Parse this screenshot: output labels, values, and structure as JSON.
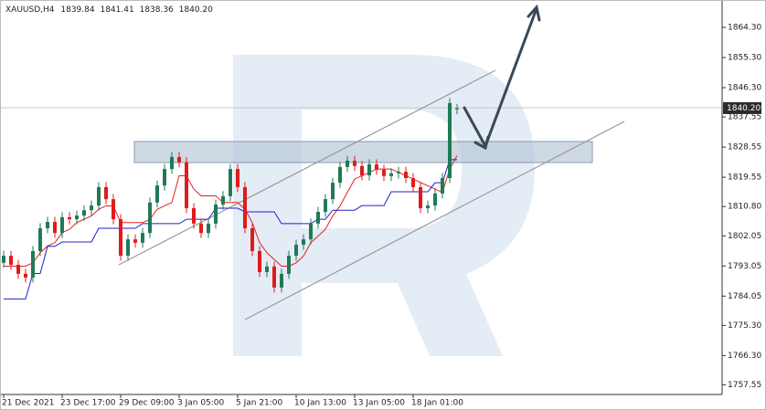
{
  "chart_data": {
    "type": "candlestick",
    "title": "XAUUSD,H4",
    "ohlc_label": [
      "1839.84",
      "1841.41",
      "1838.36",
      "1840.20"
    ],
    "categories": [
      "21 Dec 2021",
      null,
      null,
      null,
      null,
      null,
      null,
      null,
      "23 Dec 17:00",
      null,
      null,
      null,
      null,
      null,
      null,
      null,
      "29 Dec 09:00",
      null,
      null,
      null,
      null,
      null,
      null,
      null,
      "3 Jan 05:00",
      null,
      null,
      null,
      null,
      null,
      null,
      null,
      "5 Jan 21:00",
      null,
      null,
      null,
      null,
      null,
      null,
      null,
      "10 Jan 13:00",
      null,
      null,
      null,
      null,
      null,
      null,
      null,
      "13 Jan 05:00",
      null,
      null,
      null,
      null,
      null,
      null,
      null,
      "18 Jan 01:00",
      null,
      null,
      null,
      null,
      null,
      null
    ],
    "open": [
      1794.0,
      1796.1,
      1793.4,
      1790.7,
      1789.6,
      1797.5,
      1804.3,
      1806.2,
      1802.9,
      1807.6,
      1807.0,
      1808.1,
      1809.7,
      1811.1,
      1816.6,
      1813.0,
      1807.0,
      1796.1,
      1801.0,
      1800.0,
      1802.9,
      1812.0,
      1817.1,
      1822.0,
      1825.6,
      1824.0,
      1810.3,
      1805.7,
      1802.9,
      1805.7,
      1811.4,
      1813.9,
      1822.0,
      1816.6,
      1804.3,
      1797.5,
      1791.2,
      1792.9,
      1786.6,
      1790.7,
      1796.1,
      1799.4,
      1801.0,
      1805.7,
      1809.2,
      1813.0,
      1817.9,
      1822.6,
      1824.5,
      1822.9,
      1820.1,
      1823.4,
      1821.8,
      1819.9,
      1820.7,
      1821.2,
      1819.3,
      1816.6,
      1810.3,
      1811.1,
      1814.7,
      1819.3,
      1839.84
    ],
    "high": [
      1797.6,
      1797.6,
      1794.9,
      1792.2,
      1799.0,
      1805.8,
      1807.7,
      1807.7,
      1809.1,
      1809.1,
      1809.6,
      1811.2,
      1812.6,
      1818.1,
      1818.1,
      1814.5,
      1808.5,
      1802.5,
      1802.5,
      1804.4,
      1813.5,
      1818.6,
      1823.5,
      1827.1,
      1827.1,
      1825.5,
      1811.8,
      1807.2,
      1807.2,
      1812.9,
      1815.4,
      1823.5,
      1823.5,
      1818.1,
      1805.8,
      1799.0,
      1794.4,
      1794.4,
      1792.2,
      1797.6,
      1800.9,
      1802.5,
      1807.2,
      1810.7,
      1814.5,
      1819.4,
      1824.1,
      1826.0,
      1826.0,
      1824.4,
      1824.9,
      1824.9,
      1823.3,
      1822.2,
      1822.7,
      1822.7,
      1820.8,
      1818.1,
      1812.6,
      1816.2,
      1820.8,
      1843.2,
      1841.41
    ],
    "low": [
      1792.5,
      1791.9,
      1789.2,
      1788.1,
      1788.1,
      1796.0,
      1802.8,
      1801.4,
      1801.4,
      1805.5,
      1805.5,
      1806.6,
      1808.2,
      1809.6,
      1811.5,
      1805.5,
      1794.6,
      1794.6,
      1798.5,
      1798.5,
      1801.4,
      1810.5,
      1815.6,
      1820.5,
      1822.5,
      1808.8,
      1804.2,
      1801.4,
      1801.4,
      1804.2,
      1809.9,
      1812.4,
      1815.1,
      1802.8,
      1796.0,
      1789.7,
      1789.7,
      1785.1,
      1785.1,
      1789.2,
      1794.6,
      1797.9,
      1799.5,
      1804.2,
      1807.7,
      1811.5,
      1816.4,
      1821.1,
      1821.4,
      1818.6,
      1818.6,
      1820.3,
      1818.4,
      1818.4,
      1819.2,
      1817.8,
      1815.1,
      1808.8,
      1808.8,
      1809.6,
      1813.2,
      1817.8,
      1838.36
    ],
    "close": [
      1796.1,
      1793.4,
      1790.7,
      1789.6,
      1797.5,
      1804.3,
      1806.2,
      1802.9,
      1807.6,
      1807.0,
      1808.1,
      1809.7,
      1811.1,
      1816.6,
      1813.0,
      1807.0,
      1796.1,
      1801.0,
      1800.0,
      1802.9,
      1812.0,
      1817.1,
      1822.0,
      1825.6,
      1824.0,
      1810.3,
      1805.7,
      1802.9,
      1805.7,
      1811.4,
      1813.9,
      1822.0,
      1816.6,
      1804.3,
      1797.5,
      1791.2,
      1792.9,
      1786.6,
      1790.7,
      1796.1,
      1799.4,
      1801.0,
      1805.7,
      1809.2,
      1813.0,
      1817.9,
      1822.6,
      1824.5,
      1822.9,
      1820.1,
      1823.4,
      1821.8,
      1819.9,
      1820.7,
      1821.2,
      1819.3,
      1816.6,
      1810.3,
      1811.1,
      1814.7,
      1819.3,
      1841.7,
      1840.2
    ],
    "up_color": "#1f7a55",
    "down_color": "#e01b1b",
    "lines": [
      {
        "color": "#e0201b",
        "values": [
          1793,
          1793,
          1793,
          1793,
          1794,
          1797,
          1799,
          1800,
          1803,
          1804,
          1806,
          1807,
          1808,
          1810,
          1811,
          1811,
          1806,
          1806,
          1806,
          1806,
          1807,
          1810,
          1811,
          1812,
          1820,
          1820,
          1816,
          1814,
          1814,
          1814,
          1812,
          1812,
          1812,
          1810,
          1806,
          1800,
          1797,
          1795,
          1793,
          1793,
          1794,
          1796,
          1800,
          1802,
          1804,
          1808,
          1811,
          1815,
          1819,
          1820,
          1821,
          1822,
          1822,
          1822,
          1821,
          1820,
          1819,
          1818,
          1817,
          1816,
          1815,
          1822,
          1826
        ]
      },
      {
        "color": "#1f1fcc",
        "values": [
          1783.2,
          1783.2,
          1783.2,
          1783.2,
          1790.8,
          1790.8,
          1798.9,
          1798.9,
          1800.2,
          1800.2,
          1800.2,
          1800.2,
          1800.2,
          1804.3,
          1804.3,
          1804.3,
          1804.3,
          1804.3,
          1804.3,
          1805.7,
          1805.7,
          1805.7,
          1805.7,
          1805.7,
          1805.7,
          1807.0,
          1807.0,
          1807.0,
          1807.0,
          1810.3,
          1810.3,
          1810.3,
          1810.3,
          1809.2,
          1809.2,
          1809.2,
          1809.2,
          1809.2,
          1805.7,
          1805.7,
          1805.7,
          1805.7,
          1805.7,
          1807.0,
          1807.0,
          1809.7,
          1809.7,
          1809.7,
          1809.7,
          1811.1,
          1811.1,
          1811.1,
          1811.1,
          1815.2,
          1815.2,
          1815.2,
          1815.2,
          1815.2,
          1815.2,
          1817.9,
          1817.9,
          1824.8,
          1824.8
        ]
      }
    ],
    "ylim": [
      1754.67,
      1872.48
    ],
    "yticks": [
      {
        "value": 1864.3,
        "label": "1864.30"
      },
      {
        "value": 1855.3,
        "label": "1855.30"
      },
      {
        "value": 1846.3,
        "label": "1846.30"
      },
      {
        "value": 1837.55,
        "label": "1837.55"
      },
      {
        "value": 1828.55,
        "label": "1828.55"
      },
      {
        "value": 1819.55,
        "label": "1819.55"
      },
      {
        "value": 1810.8,
        "label": "1810.80"
      },
      {
        "value": 1802.05,
        "label": "1802.05"
      },
      {
        "value": 1793.05,
        "label": "1793.05"
      },
      {
        "value": 1784.05,
        "label": "1784.05"
      },
      {
        "value": 1775.3,
        "label": "1775.30"
      },
      {
        "value": 1766.3,
        "label": "1766.30"
      },
      {
        "value": 1757.55,
        "label": "1757.55"
      }
    ]
  }
}
